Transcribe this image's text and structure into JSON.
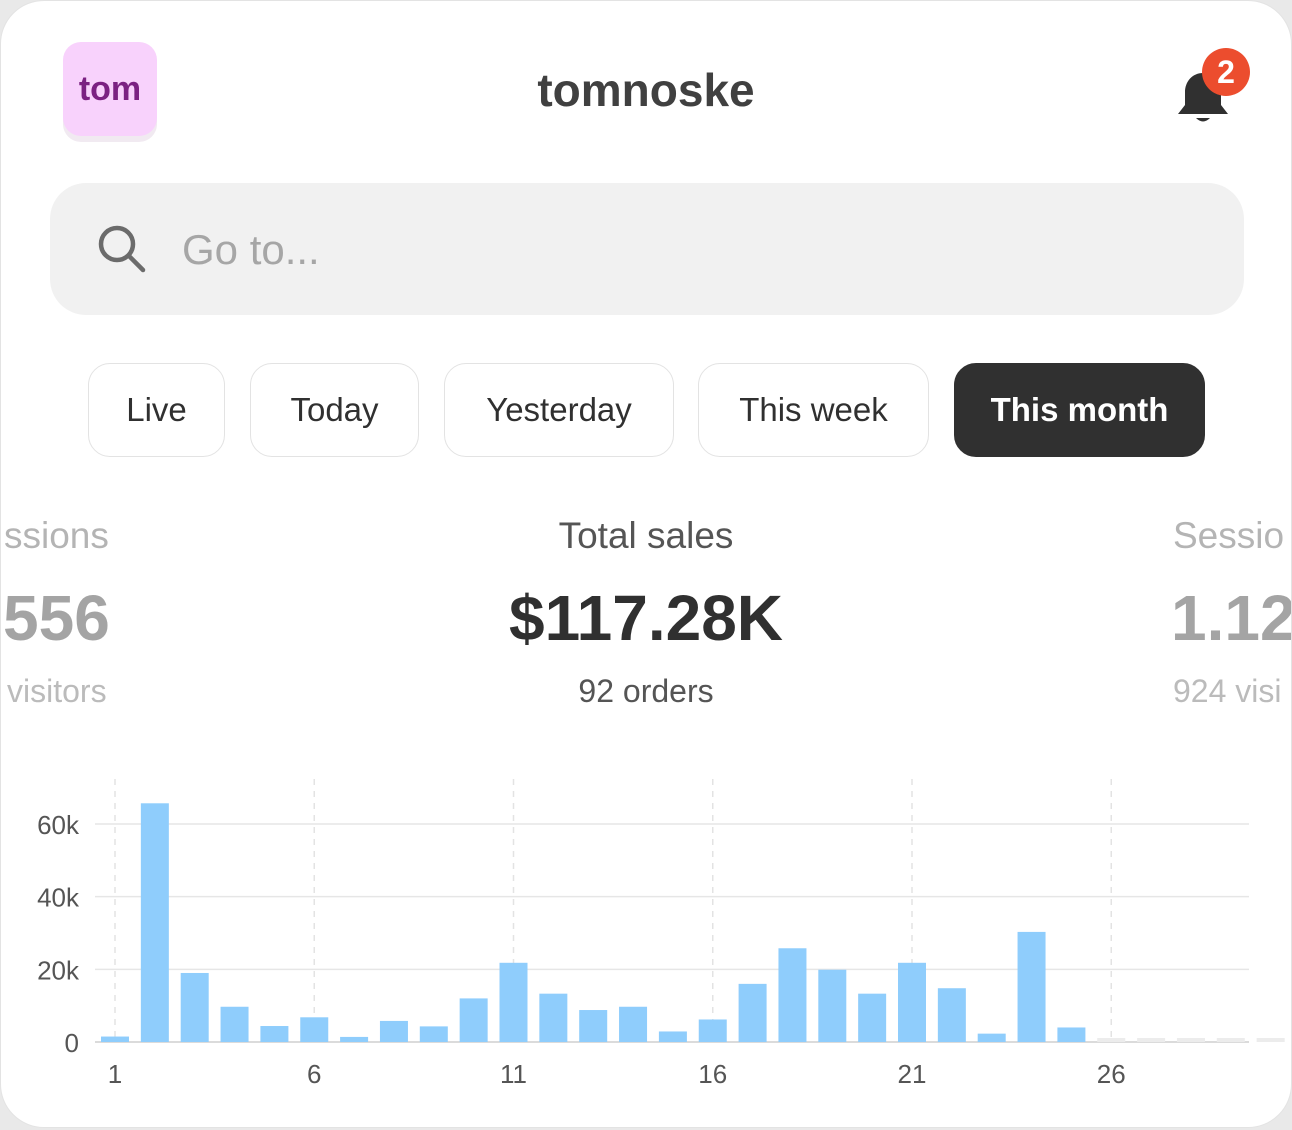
{
  "header": {
    "avatar_text": "tom",
    "store_name": "tomnoske",
    "notification_count": "2"
  },
  "search": {
    "placeholder": "Go to..."
  },
  "date_ranges": [
    {
      "label": "Live",
      "active": false
    },
    {
      "label": "Today",
      "active": false
    },
    {
      "label": "Yesterday",
      "active": false
    },
    {
      "label": "This week",
      "active": false
    },
    {
      "label": "This month",
      "active": true
    }
  ],
  "metrics": {
    "left": {
      "label": "ssions",
      "value": "556",
      "sub": "visitors"
    },
    "center": {
      "label": "Total sales",
      "value": "$117.28K",
      "sub": "92 orders"
    },
    "right": {
      "label": "Sessio",
      "value": "1.12",
      "sub": "924 visi"
    }
  },
  "colors": {
    "bar": "#8fcdfc",
    "bar_future": "#ececec",
    "active_pill": "#303030",
    "badge": "#ec4d2e"
  },
  "chart_data": {
    "type": "bar",
    "x": [
      1,
      2,
      3,
      4,
      5,
      6,
      7,
      8,
      9,
      10,
      11,
      12,
      13,
      14,
      15,
      16,
      17,
      18,
      19,
      20,
      21,
      22,
      23,
      24,
      25,
      26,
      27,
      28,
      29,
      30
    ],
    "values": [
      1500,
      65700,
      19000,
      9700,
      4400,
      6800,
      1400,
      5800,
      4300,
      12000,
      21800,
      13300,
      8800,
      9700,
      2900,
      6200,
      16000,
      25800,
      19900,
      13300,
      21800,
      14800,
      2300,
      30300,
      4000,
      0,
      0,
      0,
      0,
      0
    ],
    "future_days": [
      26,
      27,
      28,
      29,
      30
    ],
    "x_ticks": [
      "1",
      "6",
      "11",
      "16",
      "21",
      "26"
    ],
    "y_ticks": [
      "0",
      "20k",
      "40k",
      "60k"
    ],
    "ylim": [
      0,
      70000
    ],
    "grid": true
  }
}
